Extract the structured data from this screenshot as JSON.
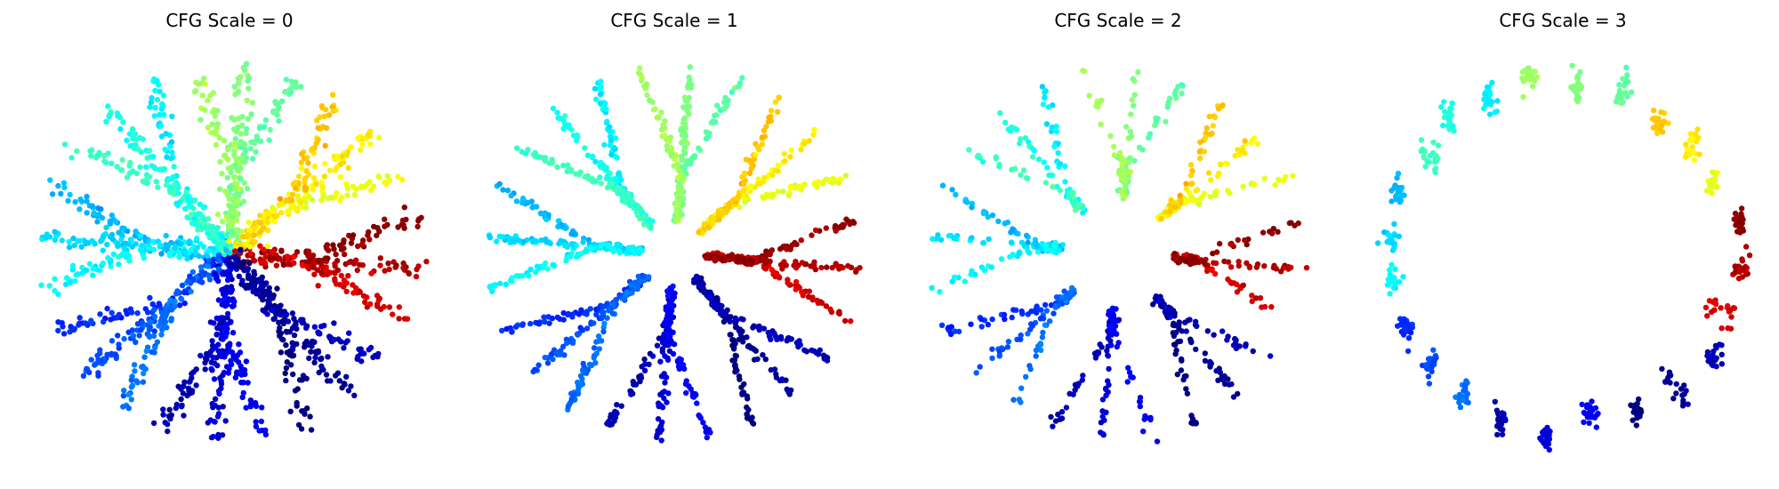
{
  "figure": {
    "background": "#ffffff",
    "colormap": "jet",
    "axes_visible": false,
    "grid": false,
    "legend": "none"
  },
  "chart_data": [
    {
      "type": "scatter",
      "title": "CFG Scale = 0",
      "structure": "hierarchical tree: 8 top-level branches, 3 leaves each (24 leaves), colored by branch angle",
      "noise": 0.6,
      "scatter_level": 1.0,
      "branches_reach_center": true,
      "gap": 0.0,
      "points_per_leaf": 75,
      "xlim": [
        -1.15,
        1.15
      ],
      "ylim": [
        -1.15,
        1.15
      ]
    },
    {
      "type": "scatter",
      "title": "CFG Scale = 1",
      "structure": "hierarchical tree: 8 top-level branches, 3 leaves each (24 leaves), colored by branch angle",
      "noise": 0.18,
      "scatter_level": 0.25,
      "branches_reach_center": false,
      "gap": 0.18,
      "points_per_leaf": 70,
      "xlim": [
        -1.15,
        1.15
      ],
      "ylim": [
        -1.15,
        1.15
      ]
    },
    {
      "type": "scatter",
      "title": "CFG Scale = 2",
      "structure": "hierarchical tree: 8 top-level branches, 3 leaves each (24 leaves), colored by branch angle; segments fragmented",
      "noise": 0.22,
      "scatter_level": 0.35,
      "branches_reach_center": false,
      "gap": 0.3,
      "points_per_leaf": 50,
      "xlim": [
        -1.15,
        1.15
      ],
      "ylim": [
        -1.15,
        1.15
      ]
    },
    {
      "type": "scatter",
      "title": "CFG Scale = 3",
      "structure": "points collapsed into small clusters near each leaf tip, forming a ring",
      "noise": 0.3,
      "scatter_level": 0.3,
      "branches_reach_center": false,
      "gap": 0.0,
      "points_per_leaf": 22,
      "xlim": [
        -1.15,
        1.15
      ],
      "ylim": [
        -1.15,
        1.15
      ]
    }
  ]
}
